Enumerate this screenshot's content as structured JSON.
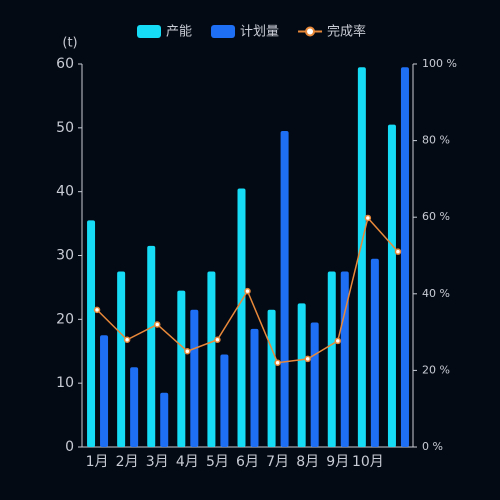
{
  "chart_data": {
    "type": "bar",
    "y_label": "(t)",
    "categories": [
      "1月",
      "2月",
      "3月",
      "4月",
      "5月",
      "6月",
      "7月",
      "8月",
      "9月",
      "10月",
      null
    ],
    "series": [
      {
        "name": "产能",
        "color": "#16dcf5",
        "values": [
          35.5,
          27.5,
          31.5,
          24.5,
          27.5,
          40.5,
          21.5,
          22.5,
          27.5,
          59.5,
          50.5
        ]
      },
      {
        "name": "计划量",
        "color": "#1f6ff5",
        "values": [
          17.5,
          12.5,
          8.5,
          21.5,
          14.5,
          18.5,
          49.5,
          19.5,
          27.5,
          29.5,
          59.5
        ]
      },
      {
        "name": "完成率",
        "type": "line",
        "axis": "y2",
        "color": "#e8893a",
        "values": [
          35.8,
          28,
          32,
          25,
          28,
          40.7,
          22,
          23,
          27.7,
          59.8,
          51
        ]
      }
    ],
    "ylim": [
      0,
      60
    ],
    "yticks": [
      0,
      10,
      20,
      30,
      40,
      50,
      60
    ],
    "y2lim": [
      0,
      100
    ],
    "y2ticks": [
      {
        "value": 0,
        "label": "0 %"
      },
      {
        "value": 20,
        "label": "20 %"
      },
      {
        "value": 40,
        "label": "40 %"
      },
      {
        "value": 60,
        "label": "60 %"
      },
      {
        "value": 80,
        "label": "80 %"
      },
      {
        "value": 100,
        "label": "100 %"
      }
    ],
    "grid": false
  }
}
